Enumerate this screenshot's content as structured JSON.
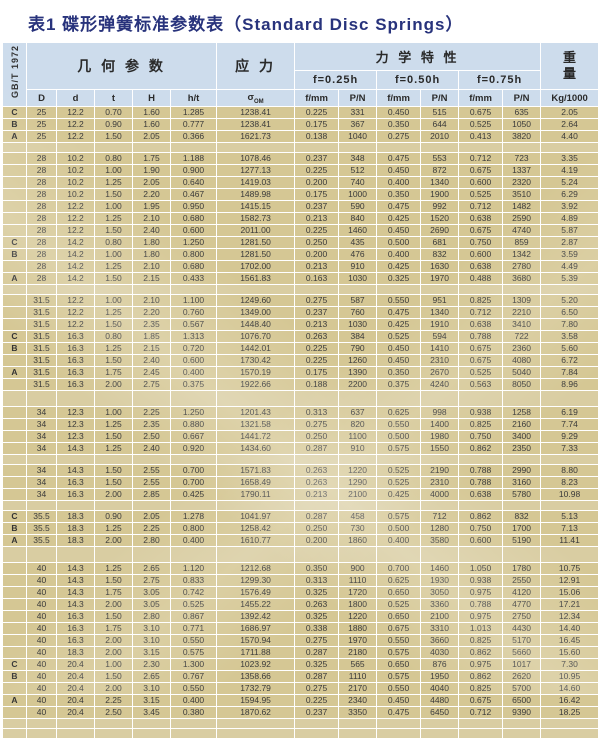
{
  "title": "表1 碟形弹簧标准参数表（Standard Disc Springs）",
  "standard_label": "GB/T 1972",
  "header": {
    "geometry": "几 何 参 数",
    "stress": "应 力",
    "mechanical": "力 学 特 性",
    "weight_char1": "重",
    "weight_char2": "量",
    "sub": [
      "f=0.25h",
      "f=0.50h",
      "f=0.75h"
    ],
    "cols": {
      "D": "D",
      "d": "d",
      "t": "t",
      "H": "H",
      "ht": "h/t",
      "sigma_main": "σ",
      "sigma_sub": "OM",
      "f": "f/mm",
      "p": "P/N",
      "w": "Kg/1000"
    }
  },
  "table": {
    "rows": [
      [
        "C",
        "25",
        "12.2",
        "0.70",
        "1.60",
        "1.285",
        "1238.41",
        "0.225",
        "331",
        "0.450",
        "515",
        "0.675",
        "635",
        "2.05"
      ],
      [
        "B",
        "25",
        "12.2",
        "0.90",
        "1.60",
        "0.777",
        "1238.41",
        "0.175",
        "367",
        "0.350",
        "644",
        "0.525",
        "1050",
        "2.64"
      ],
      [
        "A",
        "25",
        "12.2",
        "1.50",
        "2.05",
        "0.366",
        "1621.73",
        "0.138",
        "1040",
        "0.275",
        "2010",
        "0.413",
        "3820",
        "4.40"
      ],
      "gap",
      [
        "",
        "28",
        "10.2",
        "0.80",
        "1.75",
        "1.188",
        "1078.46",
        "0.237",
        "348",
        "0.475",
        "553",
        "0.712",
        "723",
        "3.35"
      ],
      [
        "",
        "28",
        "10.2",
        "1.00",
        "1.90",
        "0.900",
        "1277.13",
        "0.225",
        "512",
        "0.450",
        "872",
        "0.675",
        "1337",
        "4.19"
      ],
      [
        "",
        "28",
        "10.2",
        "1.25",
        "2.05",
        "0.640",
        "1419.03",
        "0.200",
        "740",
        "0.400",
        "1340",
        "0.600",
        "2320",
        "5.24"
      ],
      [
        "",
        "28",
        "10.2",
        "1.50",
        "2.20",
        "0.467",
        "1489.98",
        "0.175",
        "1000",
        "0.350",
        "1900",
        "0.525",
        "3510",
        "6.29"
      ],
      [
        "",
        "28",
        "12.2",
        "1.00",
        "1.95",
        "0.950",
        "1415.15",
        "0.237",
        "590",
        "0.475",
        "992",
        "0.712",
        "1482",
        "3.92"
      ],
      [
        "",
        "28",
        "12.2",
        "1.25",
        "2.10",
        "0.680",
        "1582.73",
        "0.213",
        "840",
        "0.425",
        "1520",
        "0.638",
        "2590",
        "4.89"
      ],
      [
        "",
        "28",
        "12.2",
        "1.50",
        "2.40",
        "0.600",
        "2011.00",
        "0.225",
        "1460",
        "0.450",
        "2690",
        "0.675",
        "4740",
        "5.87"
      ],
      [
        "C",
        "28",
        "14.2",
        "0.80",
        "1.80",
        "1.250",
        "1281.50",
        "0.250",
        "435",
        "0.500",
        "681",
        "0.750",
        "859",
        "2.87"
      ],
      [
        "B",
        "28",
        "14.2",
        "1.00",
        "1.80",
        "0.800",
        "1281.50",
        "0.200",
        "476",
        "0.400",
        "832",
        "0.600",
        "1342",
        "3.59"
      ],
      [
        "",
        "28",
        "14.2",
        "1.25",
        "2.10",
        "0.680",
        "1702.00",
        "0.213",
        "910",
        "0.425",
        "1630",
        "0.638",
        "2780",
        "4.49"
      ],
      [
        "A",
        "28",
        "14.2",
        "1.50",
        "2.15",
        "0.433",
        "1561.83",
        "0.163",
        "1030",
        "0.325",
        "1970",
        "0.488",
        "3680",
        "5.39"
      ],
      "gap",
      [
        "",
        "31.5",
        "12.2",
        "1.00",
        "2.10",
        "1.100",
        "1249.60",
        "0.275",
        "587",
        "0.550",
        "951",
        "0.825",
        "1309",
        "5.20"
      ],
      [
        "",
        "31.5",
        "12.2",
        "1.25",
        "2.20",
        "0.760",
        "1349.00",
        "0.237",
        "760",
        "0.475",
        "1340",
        "0.712",
        "2210",
        "6.50"
      ],
      [
        "",
        "31.5",
        "12.2",
        "1.50",
        "2.35",
        "0.567",
        "1448.40",
        "0.213",
        "1030",
        "0.425",
        "1910",
        "0.638",
        "3410",
        "7.80"
      ],
      [
        "C",
        "31.5",
        "16.3",
        "0.80",
        "1.85",
        "1.313",
        "1076.70",
        "0.263",
        "384",
        "0.525",
        "594",
        "0.788",
        "722",
        "3.58"
      ],
      [
        "B",
        "31.5",
        "16.3",
        "1.25",
        "2.15",
        "0.720",
        "1442.01",
        "0.225",
        "790",
        "0.450",
        "1410",
        "0.675",
        "2360",
        "5.60"
      ],
      [
        "",
        "31.5",
        "16.3",
        "1.50",
        "2.40",
        "0.600",
        "1730.42",
        "0.225",
        "1260",
        "0.450",
        "2310",
        "0.675",
        "4080",
        "6.72"
      ],
      [
        "A",
        "31.5",
        "16.3",
        "1.75",
        "2.45",
        "0.400",
        "1570.19",
        "0.175",
        "1390",
        "0.350",
        "2670",
        "0.525",
        "5040",
        "7.84"
      ],
      [
        "",
        "31.5",
        "16.3",
        "2.00",
        "2.75",
        "0.375",
        "1922.66",
        "0.188",
        "2200",
        "0.375",
        "4240",
        "0.563",
        "8050",
        "8.96"
      ],
      "gapTall",
      [
        "",
        "34",
        "12.3",
        "1.00",
        "2.25",
        "1.250",
        "1201.43",
        "0.313",
        "637",
        "0.625",
        "998",
        "0.938",
        "1258",
        "6.19"
      ],
      [
        "",
        "34",
        "12.3",
        "1.25",
        "2.35",
        "0.880",
        "1321.58",
        "0.275",
        "820",
        "0.550",
        "1400",
        "0.825",
        "2160",
        "7.74"
      ],
      [
        "",
        "34",
        "12.3",
        "1.50",
        "2.50",
        "0.667",
        "1441.72",
        "0.250",
        "1100",
        "0.500",
        "1980",
        "0.750",
        "3400",
        "9.29"
      ],
      [
        "",
        "34",
        "14.3",
        "1.25",
        "2.40",
        "0.920",
        "1434.60",
        "0.287",
        "910",
        "0.575",
        "1550",
        "0.862",
        "2350",
        "7.33"
      ],
      "gap",
      [
        "",
        "34",
        "14.3",
        "1.50",
        "2.55",
        "0.700",
        "1571.83",
        "0.263",
        "1220",
        "0.525",
        "2190",
        "0.788",
        "2990",
        "8.80"
      ],
      [
        "",
        "34",
        "16.3",
        "1.50",
        "2.55",
        "0.700",
        "1658.49",
        "0.263",
        "1290",
        "0.525",
        "2310",
        "0.788",
        "3160",
        "8.23"
      ],
      [
        "",
        "34",
        "16.3",
        "2.00",
        "2.85",
        "0.425",
        "1790.11",
        "0.213",
        "2100",
        "0.425",
        "4000",
        "0.638",
        "5780",
        "10.98"
      ],
      "gap",
      [
        "C",
        "35.5",
        "18.3",
        "0.90",
        "2.05",
        "1.278",
        "1041.97",
        "0.287",
        "458",
        "0.575",
        "712",
        "0.862",
        "832",
        "5.13"
      ],
      [
        "B",
        "35.5",
        "18.3",
        "1.25",
        "2.25",
        "0.800",
        "1258.42",
        "0.250",
        "730",
        "0.500",
        "1280",
        "0.750",
        "1700",
        "7.13"
      ],
      [
        "A",
        "35.5",
        "18.3",
        "2.00",
        "2.80",
        "0.400",
        "1610.77",
        "0.200",
        "1860",
        "0.400",
        "3580",
        "0.600",
        "5190",
        "11.41"
      ],
      "gapTall",
      [
        "",
        "40",
        "14.3",
        "1.25",
        "2.65",
        "1.120",
        "1212.68",
        "0.350",
        "900",
        "0.700",
        "1460",
        "1.050",
        "1780",
        "10.75"
      ],
      [
        "",
        "40",
        "14.3",
        "1.50",
        "2.75",
        "0.833",
        "1299.30",
        "0.313",
        "1110",
        "0.625",
        "1930",
        "0.938",
        "2550",
        "12.91"
      ],
      [
        "",
        "40",
        "14.3",
        "1.75",
        "3.05",
        "0.742",
        "1576.49",
        "0.325",
        "1720",
        "0.650",
        "3050",
        "0.975",
        "4120",
        "15.06"
      ],
      [
        "",
        "40",
        "14.3",
        "2.00",
        "3.05",
        "0.525",
        "1455.22",
        "0.263",
        "1800",
        "0.525",
        "3360",
        "0.788",
        "4770",
        "17.21"
      ],
      [
        "",
        "40",
        "16.3",
        "1.50",
        "2.80",
        "0.867",
        "1392.42",
        "0.325",
        "1220",
        "0.650",
        "2100",
        "0.975",
        "2750",
        "12.34"
      ],
      [
        "",
        "40",
        "16.3",
        "1.75",
        "3.10",
        "0.771",
        "1686.97",
        "0.338",
        "1880",
        "0.675",
        "3310",
        "1.013",
        "4430",
        "14.40"
      ],
      [
        "",
        "40",
        "16.3",
        "2.00",
        "3.10",
        "0.550",
        "1570.94",
        "0.275",
        "1970",
        "0.550",
        "3660",
        "0.825",
        "5170",
        "16.45"
      ],
      [
        "",
        "40",
        "18.3",
        "2.00",
        "3.15",
        "0.575",
        "1711.88",
        "0.287",
        "2180",
        "0.575",
        "4030",
        "0.862",
        "5660",
        "15.60"
      ],
      [
        "C",
        "40",
        "20.4",
        "1.00",
        "2.30",
        "1.300",
        "1023.92",
        "0.325",
        "565",
        "0.650",
        "876",
        "0.975",
        "1017",
        "7.30"
      ],
      [
        "B",
        "40",
        "20.4",
        "1.50",
        "2.65",
        "0.767",
        "1358.66",
        "0.287",
        "1110",
        "0.575",
        "1950",
        "0.862",
        "2620",
        "10.95"
      ],
      [
        "",
        "40",
        "20.4",
        "2.00",
        "3.10",
        "0.550",
        "1732.79",
        "0.275",
        "2170",
        "0.550",
        "4040",
        "0.825",
        "5700",
        "14.60"
      ],
      [
        "A",
        "40",
        "20.4",
        "2.25",
        "3.15",
        "0.400",
        "1594.95",
        "0.225",
        "2340",
        "0.450",
        "4480",
        "0.675",
        "6500",
        "16.42"
      ],
      [
        "",
        "40",
        "20.4",
        "2.50",
        "3.45",
        "0.380",
        "1870.62",
        "0.237",
        "3350",
        "0.475",
        "6450",
        "0.712",
        "9390",
        "18.25"
      ],
      "gap",
      "gap"
    ]
  },
  "colors": {
    "title": "#28337c",
    "header_bg": "#cddcec",
    "row_bg": "#d5c794",
    "gap_bg": "#d9cda2"
  }
}
